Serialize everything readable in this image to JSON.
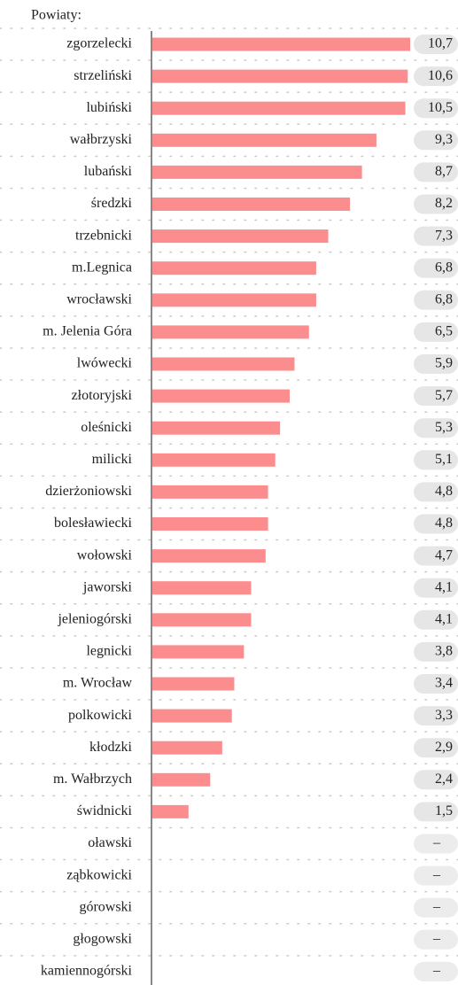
{
  "chart_data": {
    "type": "bar",
    "orientation": "horizontal",
    "title": "Powiaty:",
    "categories": [
      "zgorzelecki",
      "strzeliński",
      "lubiński",
      "wałbrzyski",
      "lubański",
      "średzki",
      "trzebnicki",
      "m.Legnica",
      "wrocławski",
      "m. Jelenia Góra",
      "lwówecki",
      "złotoryjski",
      "oleśnicki",
      "milicki",
      "dzierżoniowski",
      "bolesławiecki",
      "wołowski",
      "jaworski",
      "jeleniogórski",
      "legnicki",
      "m. Wrocław",
      "polkowicki",
      "kłodzki",
      "m. Wałbrzych",
      "świdnicki",
      "oławski",
      "ząbkowicki",
      "górowski",
      "głogowski",
      "kamiennogórski"
    ],
    "values": [
      10.7,
      10.6,
      10.5,
      9.3,
      8.7,
      8.2,
      7.3,
      6.8,
      6.8,
      6.5,
      5.9,
      5.7,
      5.3,
      5.1,
      4.8,
      4.8,
      4.7,
      4.1,
      4.1,
      3.8,
      3.4,
      3.3,
      2.9,
      2.4,
      1.5,
      null,
      null,
      null,
      null,
      null
    ],
    "value_labels": [
      "10,7",
      "10,6",
      "10,5",
      "9,3",
      "8,7",
      "8,2",
      "7,3",
      "6,8",
      "6,8",
      "6,5",
      "5,9",
      "5,7",
      "5,3",
      "5,1",
      "4,8",
      "4,8",
      "4,7",
      "4,1",
      "4,1",
      "3,8",
      "3,4",
      "3,3",
      "2,9",
      "2,4",
      "1,5",
      "–",
      "–",
      "–",
      "–",
      "–"
    ],
    "color": "#fb8d8f"
  }
}
